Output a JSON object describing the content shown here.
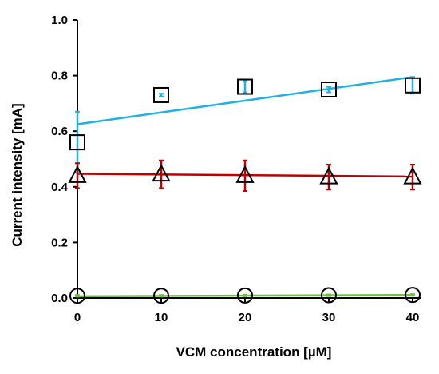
{
  "chart_data": {
    "type": "scatter",
    "title": "",
    "xlabel": "VCM concentration [µM]",
    "ylabel": "Current intensity [mA]",
    "xlim": [
      0,
      40
    ],
    "ylim": [
      0,
      1.0
    ],
    "xticks": [
      "0",
      "10",
      "20",
      "30",
      "40"
    ],
    "yticks": [
      "0.0",
      "0.2",
      "0.4",
      "0.6",
      "0.8",
      "1.0"
    ],
    "grid": false,
    "legend": "none",
    "series": [
      {
        "marker": "square",
        "color": "#1fb0e6",
        "x": [
          0,
          10,
          20,
          30,
          40
        ],
        "y": [
          0.56,
          0.73,
          0.76,
          0.75,
          0.765
        ],
        "err": [
          0.11,
          0.005,
          0.02,
          0.01,
          0.03
        ],
        "fit": [
          0.625,
          0.795
        ]
      },
      {
        "marker": "triangle",
        "color": "#c00000",
        "x": [
          0,
          10,
          20,
          30,
          40
        ],
        "y": [
          0.44,
          0.445,
          0.44,
          0.435,
          0.435
        ],
        "err": [
          0.045,
          0.05,
          0.055,
          0.045,
          0.045
        ],
        "fit": [
          0.447,
          0.437
        ]
      },
      {
        "marker": "circle",
        "color": "#70c040",
        "x": [
          0,
          10,
          20,
          30,
          40
        ],
        "y": [
          0.008,
          0.008,
          0.009,
          0.01,
          0.011
        ],
        "err": [
          0.003,
          0.003,
          0.003,
          0.003,
          0.003
        ],
        "fit": [
          0.006,
          0.011
        ]
      }
    ]
  }
}
